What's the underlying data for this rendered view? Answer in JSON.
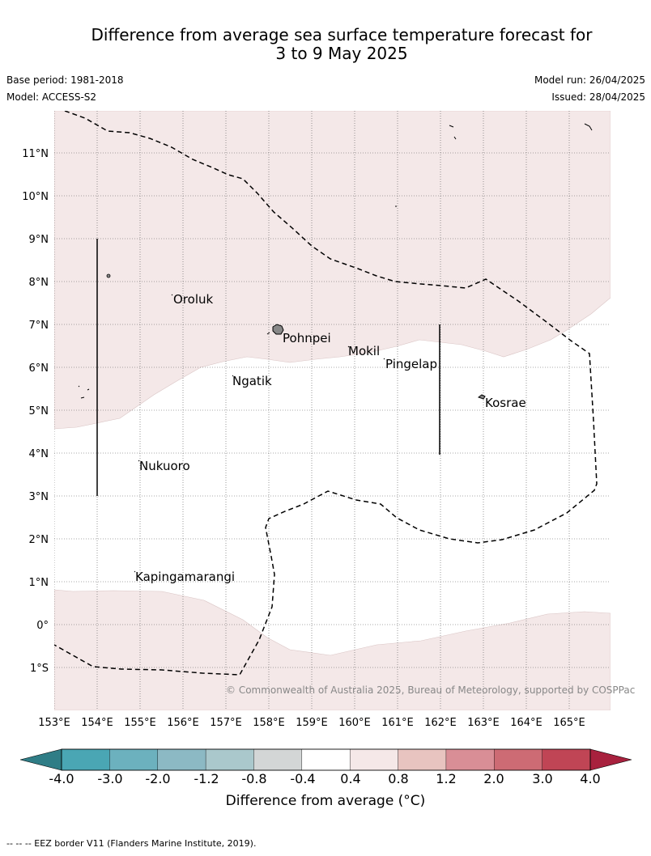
{
  "header": {
    "title_line1": "Difference from average sea surface temperature forecast for",
    "title_line2": "3 to 9 May 2025",
    "base_period": "Base period: 1981-2018",
    "model": "Model: ACCESS-S2",
    "model_run": "Model run: 26/04/2025",
    "issued": "Issued: 28/04/2025"
  },
  "map": {
    "lat_labels": [
      "11°N",
      "10°N",
      "9°N",
      "8°N",
      "7°N",
      "6°N",
      "5°N",
      "4°N",
      "3°N",
      "2°N",
      "1°N",
      "0°",
      "1°S"
    ],
    "lon_labels": [
      "153°E",
      "154°E",
      "155°E",
      "156°E",
      "157°E",
      "158°E",
      "159°E",
      "160°E",
      "161°E",
      "162°E",
      "163°E",
      "164°E",
      "165°E"
    ],
    "places": [
      "Oroluk",
      "Pohnpei",
      "Mokil",
      "Pingelap",
      "Ngatik",
      "Kosrae",
      "Nukuoro",
      "Kapingamarangi"
    ],
    "copyright": "© Commonwealth of Australia 2025, Bureau of Meteorology, supported by COSPPac",
    "colors": {
      "warm_0_4_to_0_8": "#f4e8e8",
      "neutral": "#ffffff"
    }
  },
  "colorbar": {
    "ticks": [
      "-4.0",
      "-3.0",
      "-2.0",
      "-1.2",
      "-0.8",
      "-0.4",
      "0.4",
      "0.8",
      "1.2",
      "2.0",
      "3.0",
      "4.0"
    ],
    "colors": [
      "#2f7d86",
      "#4aa6b4",
      "#6cb1be",
      "#8cb9c4",
      "#aac8cc",
      "#d3d6d6",
      "#ffffff",
      "#f5e8e8",
      "#e8c4c0",
      "#d98e96",
      "#cd6b74",
      "#c04555",
      "#a8213e"
    ],
    "title": "Difference from average (°C)"
  },
  "footnote": "-- -- -- EEZ border V11 (Flanders Marine Institute, 2019)."
}
